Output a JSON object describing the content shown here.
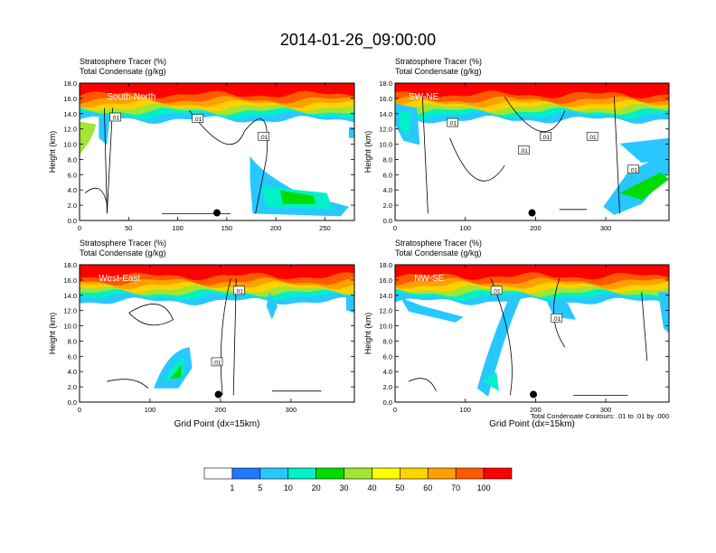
{
  "figure": {
    "title": "2014-01-26_09:00:00",
    "footnote": "Total Condensate Contours: .01 to .01 by .000",
    "colorbar": {
      "colors": [
        "#ffffff",
        "#1e78ff",
        "#28c8ff",
        "#00f0c8",
        "#00dc00",
        "#a0e632",
        "#ffff00",
        "#ffd200",
        "#ffa000",
        "#ff5a00",
        "#ff0000"
      ],
      "labels": [
        "1",
        "5",
        "10",
        "20",
        "30",
        "40",
        "50",
        "60",
        "70",
        "100"
      ]
    }
  },
  "chart_data": [
    {
      "type": "heatmap",
      "title": "South-North",
      "subtitle_lines": [
        "Stratosphere Tracer   (%)",
        "Total Condensate   (g/kg)"
      ],
      "ylabel": "Height (km)",
      "xlabel": "",
      "xlim": [
        0,
        280
      ],
      "ylim": [
        0,
        18
      ],
      "xticks": [
        "0",
        "50",
        "100",
        "150",
        "200",
        "250"
      ],
      "yticks": [
        "0.0",
        "2.0",
        "4.0",
        "6.0",
        "8.0",
        "10.0",
        "12.0",
        "14.0",
        "16.0",
        "18.0"
      ],
      "contour_labels": [
        ".01",
        ".01",
        ".01"
      ],
      "marker": {
        "x": 140,
        "y": 1.0
      },
      "tracer_level_percent_top": 100
    },
    {
      "type": "heatmap",
      "title": "SW-NE",
      "subtitle_lines": [
        "Stratosphere Tracer   (%)",
        "Total Condensate   (g/kg)"
      ],
      "ylabel": "Height (km)",
      "xlabel": "",
      "xlim": [
        0,
        390
      ],
      "ylim": [
        0,
        18
      ],
      "xticks": [
        "0",
        "100",
        "200",
        "300"
      ],
      "yticks": [
        "0.0",
        "2.0",
        "4.0",
        "6.0",
        "8.0",
        "10.0",
        "12.0",
        "14.0",
        "16.0",
        "18.0"
      ],
      "contour_labels": [
        ".01",
        ".01",
        ".01",
        ".01",
        ".01"
      ],
      "marker": {
        "x": 195,
        "y": 1.0
      },
      "tracer_level_percent_top": 100
    },
    {
      "type": "heatmap",
      "title": "West-East",
      "subtitle_lines": [
        "Stratosphere Tracer   (%)",
        "Total Condensate   (g/kg)"
      ],
      "ylabel": "Height (km)",
      "xlabel": "Grid Point (dx=15km)",
      "xlim": [
        0,
        390
      ],
      "ylim": [
        0,
        18
      ],
      "xticks": [
        "0",
        "100",
        "200",
        "300"
      ],
      "yticks": [
        "0.0",
        "2.0",
        "4.0",
        "6.0",
        "8.0",
        "10.0",
        "12.0",
        "14.0",
        "16.0",
        "18.0"
      ],
      "contour_labels": [
        ".01",
        ".01"
      ],
      "marker": {
        "x": 197,
        "y": 1.0
      },
      "tracer_level_percent_top": 100
    },
    {
      "type": "heatmap",
      "title": "NW-SE",
      "subtitle_lines": [
        "Stratosphere Tracer   (%)",
        "Total Condensate   (g/kg)"
      ],
      "ylabel": "Height (km)",
      "xlabel": "Grid Point (dx=15km)",
      "xlim": [
        0,
        390
      ],
      "ylim": [
        0,
        18
      ],
      "xticks": [
        "0",
        "100",
        "200",
        "300"
      ],
      "yticks": [
        "0.0",
        "2.0",
        "4.0",
        "6.0",
        "8.0",
        "10.0",
        "12.0",
        "14.0",
        "16.0",
        "18.0"
      ],
      "contour_labels": [
        ".01",
        ".01"
      ],
      "marker": {
        "x": 197,
        "y": 1.0
      },
      "tracer_level_percent_top": 100
    }
  ]
}
